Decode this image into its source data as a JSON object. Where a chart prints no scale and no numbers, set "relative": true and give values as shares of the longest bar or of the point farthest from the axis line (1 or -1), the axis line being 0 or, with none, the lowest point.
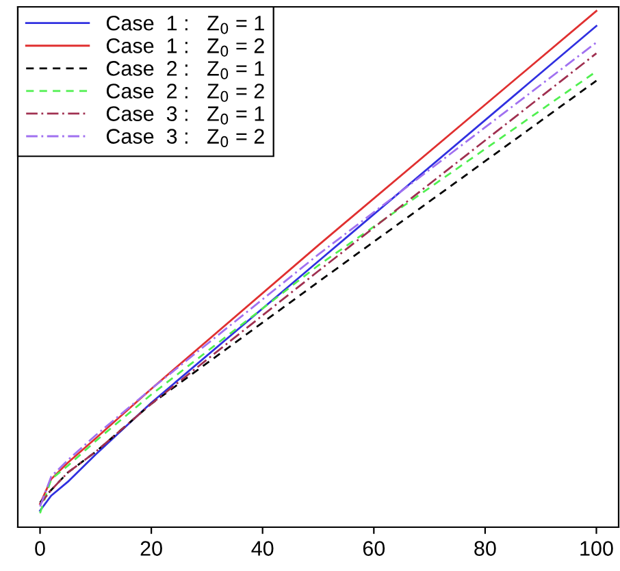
{
  "chart_data": {
    "type": "line",
    "relative": true,
    "x": [
      0,
      2,
      5,
      10,
      20,
      50,
      100
    ],
    "xlim": [
      -4,
      104
    ],
    "xticks": [
      0,
      20,
      40,
      60,
      80,
      100
    ],
    "legend": "top left",
    "grid": false,
    "series": [
      {
        "name": "Case  1 :   Z$_{0}$ = 1",
        "color": "#3030e0",
        "line_style": "solid",
        "values": [
          0.032,
          0.061,
          0.088,
          0.141,
          0.241,
          0.515,
          0.971
        ]
      },
      {
        "name": "Case  1 :   Z$_{0}$ = 2",
        "color": "#e03030",
        "line_style": "solid",
        "values": [
          0.045,
          0.093,
          0.125,
          0.172,
          0.268,
          0.546,
          1
        ]
      },
      {
        "name": "Case  2 :   Z$_{0}$ = 1",
        "color": "#000000",
        "line_style": "dashed",
        "values": [
          0.048,
          0.072,
          0.106,
          0.146,
          0.239,
          0.475,
          0.865
        ]
      },
      {
        "name": "Case  2 :   Z$_{0}$ = 2",
        "color": "#50f050",
        "line_style": "dashed",
        "values": [
          0.027,
          0.093,
          0.119,
          0.167,
          0.257,
          0.507,
          0.883
        ]
      },
      {
        "name": "Case  3 :   Z$_{0}$ = 1",
        "color": "#a03050",
        "line_style": "dashdot",
        "values": [
          0.045,
          0.072,
          0.106,
          0.146,
          0.239,
          0.496,
          0.918
        ]
      },
      {
        "name": "Case  3 :   Z$_{0}$ = 2",
        "color": "#a070f0",
        "line_style": "dashdot",
        "values": [
          0.04,
          0.098,
          0.13,
          0.178,
          0.268,
          0.528,
          0.939
        ]
      }
    ]
  }
}
